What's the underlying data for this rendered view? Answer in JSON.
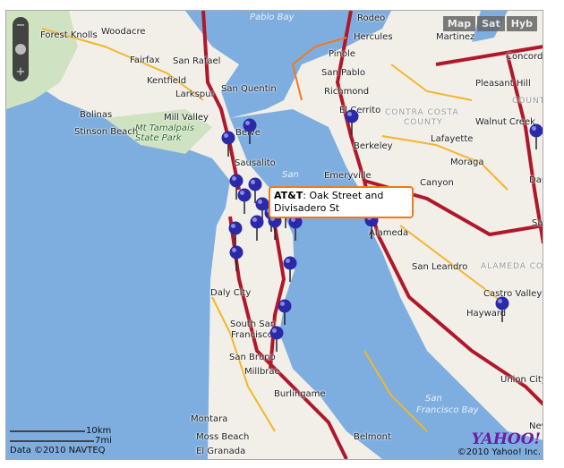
{
  "map": {
    "type_buttons": [
      "Map",
      "Sat",
      "Hyb"
    ],
    "zoom": {
      "minus": "−",
      "plus": "+"
    },
    "popup": {
      "title": "AT&T",
      "text": ": Oak Street and Divisadero St"
    },
    "scale": {
      "km": "10km",
      "mi": "7mi"
    },
    "data_credit": "Data ©2010 NAVTEQ",
    "logo": "YAHOO!",
    "copyright": "©2010 Yahoo! Inc.",
    "colors": {
      "water": "#7eaee0",
      "land": "#f1efe8",
      "freeway": "#b0182a",
      "road": "#f4b52a",
      "pin": "#2a2aa8",
      "popup_border": "#f07a1a"
    },
    "places": [
      "Forest Knolls",
      "Woodacre",
      "Fairfax",
      "San Rafael",
      "Kentfield",
      "Larkspur",
      "San Quentin",
      "Mill Valley",
      "Bolinas",
      "Stinson Beach",
      "Mt Tamalpais",
      "State Park",
      "Belve",
      "Sausalito",
      "San Pablo",
      "Richmond",
      "El Cerrito",
      "CONTRA COSTA",
      "COUNTY",
      "Berkeley",
      "Emeryville",
      "Lafayette",
      "Walnut Creek",
      "Pleasant Hill",
      "Concord",
      "Martinez",
      "Hercules",
      "Pinole",
      "Rodeo",
      "Pablo Bay",
      "Moraga",
      "Canyon",
      "Danv",
      "Alameda",
      "San Leandro",
      "ALAMEDA COUNTY",
      "Castro Valley",
      "Hayward",
      "Union City",
      "Daly City",
      "South San",
      "Francisco",
      "San Bruno",
      "Millbrae",
      "Burlingame",
      "Montara",
      "Moss Beach",
      "El Granada",
      "Belmont",
      "San",
      "Francisco Bay",
      "San",
      "Sa",
      "COUNTY",
      "New"
    ],
    "pin_icon": "map-marker-icon",
    "pins": 20
  }
}
